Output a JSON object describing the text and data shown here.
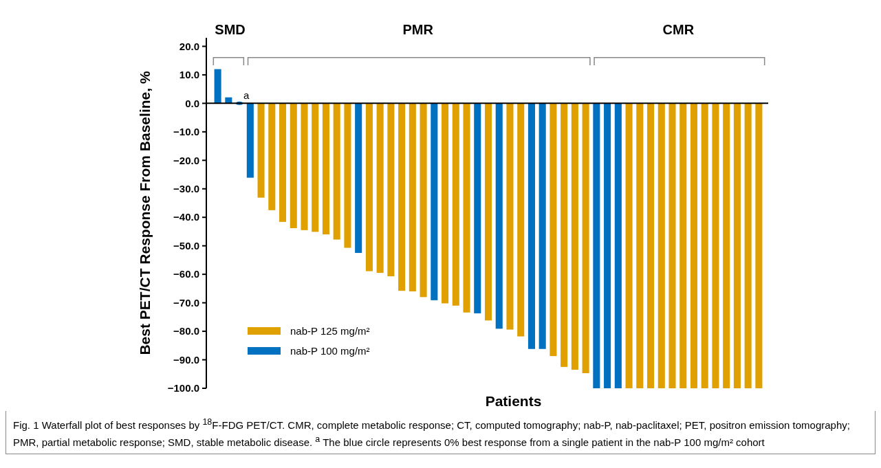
{
  "chart_data": {
    "type": "bar",
    "xlabel": "Patients",
    "ylabel": "Best PET/CT Response From Baseline, %",
    "categories": [
      null,
      null,
      null,
      null,
      null,
      null,
      null,
      null,
      null,
      null,
      null,
      null,
      null,
      null,
      null,
      null,
      null,
      null,
      null,
      null,
      null,
      null,
      null,
      null,
      null,
      null,
      null,
      null,
      null,
      null,
      null,
      null,
      null,
      null,
      null,
      null,
      null,
      null,
      null,
      null,
      null,
      null,
      null,
      null,
      null,
      null,
      null,
      null,
      null,
      null,
      null
    ],
    "series": [
      {
        "name": "nab-P 125 mg/m²",
        "color": "#e0a000",
        "values": [
          null,
          null,
          null,
          null,
          -33.1,
          -37.5,
          -41.6,
          -43.8,
          -44.5,
          -45.1,
          -46.0,
          -47.8,
          -50.7,
          null,
          -58.9,
          -59.5,
          -60.7,
          -65.8,
          -66.0,
          -68.0,
          null,
          -70.2,
          -71.0,
          -73.4,
          null,
          -76.2,
          null,
          -79.4,
          -81.8,
          null,
          null,
          -88.7,
          -92.5,
          -93.5,
          -94.7,
          null,
          null,
          null,
          -100,
          -100,
          -100,
          -100,
          -100,
          -100,
          -100,
          -100,
          -100,
          -100,
          -100,
          -100,
          -100
        ]
      },
      {
        "name": "nab-P 100 mg/m²",
        "color": "#0070c0",
        "values": [
          12.0,
          2.1,
          0,
          -26.1,
          null,
          null,
          null,
          null,
          null,
          null,
          null,
          null,
          null,
          -52.5,
          null,
          null,
          null,
          null,
          null,
          null,
          -69.1,
          null,
          null,
          null,
          -73.7,
          null,
          -79.1,
          null,
          null,
          -86.2,
          -86.2,
          null,
          null,
          null,
          null,
          -100,
          -100,
          -100,
          null,
          null,
          null,
          null,
          null,
          null,
          null,
          null,
          null,
          null,
          null,
          null,
          null
        ]
      }
    ],
    "ylim": [
      -100,
      23
    ],
    "yticks": [
      {
        "value": 20,
        "label": "20.0"
      },
      {
        "value": 10,
        "label": "10.0"
      },
      {
        "value": 0,
        "label": "0.0"
      },
      {
        "value": -10,
        "label": "−10.0"
      },
      {
        "value": -20,
        "label": "−20.0"
      },
      {
        "value": -30,
        "label": "−30.0"
      },
      {
        "value": -40,
        "label": "−40.0"
      },
      {
        "value": -50,
        "label": "−50.0"
      },
      {
        "value": -60,
        "label": "−60.0"
      },
      {
        "value": -70,
        "label": "−70.0"
      },
      {
        "value": -80,
        "label": "−80.0"
      },
      {
        "value": -90,
        "label": "−90.0"
      },
      {
        "value": -100,
        "label": "−100.0"
      }
    ],
    "legend": "bottom left",
    "annotations": [
      "SMD",
      "PMR",
      "CMR",
      "a",
      "Fig. 1 Waterfall plot of best responses by $^{18}$F-FDG PET/CT. CMR, complete metabolic response; CT, computed tomography; nab-P, nab-paclitaxel; PET, positron emission tomography; PMR, partial metabolic response; SMD, stable metabolic disease. $^{a}$ The blue circle represents 0% best response from a single patient in the nab-P 100 mg/m² cohort"
    ]
  }
}
